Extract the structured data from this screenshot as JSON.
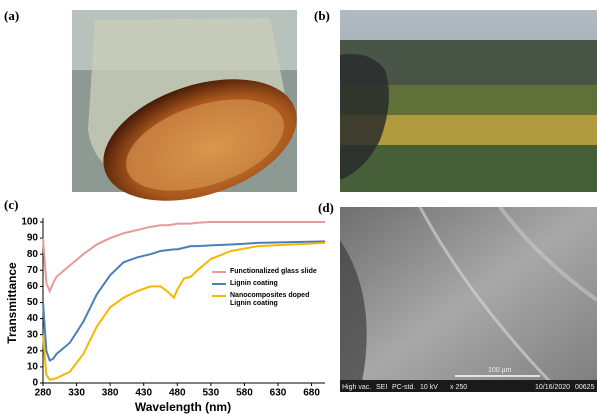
{
  "panels": {
    "a": {
      "label": "(a)"
    },
    "b": {
      "label": "(b)"
    },
    "c": {
      "label": "(c)"
    },
    "d": {
      "label": "(d)",
      "scale_bar": "100 µm",
      "info_bar": [
        "High vac.",
        "SEI",
        "PC-std.",
        "10 kV",
        "x 250",
        "10/16/2020",
        "00625"
      ]
    }
  },
  "chart_data": {
    "type": "line",
    "x_label": "Wavelength (nm)",
    "y_label": "Transmittance",
    "x": [
      280,
      285,
      290,
      295,
      300,
      320,
      340,
      360,
      380,
      400,
      420,
      440,
      455,
      465,
      475,
      480,
      490,
      500,
      510,
      530,
      560,
      600,
      650,
      700
    ],
    "series": [
      {
        "name": "Functionalized glass slide",
        "color": "#e89a9a",
        "values": [
          90,
          62,
          57,
          62,
          66,
          73,
          80,
          86,
          90,
          93,
          95,
          97,
          98,
          98,
          98.5,
          99,
          99,
          99,
          99.5,
          100,
          100,
          100,
          100,
          100
        ]
      },
      {
        "name": "Lignin coating",
        "color": "#4a7ebb",
        "values": [
          50,
          20,
          14,
          15,
          18,
          25,
          38,
          55,
          67,
          75,
          78,
          80,
          82,
          82.5,
          83,
          83,
          84,
          85,
          85,
          85.5,
          86,
          87,
          87.5,
          88
        ]
      },
      {
        "name": "Nanocomposites doped Lignin coating",
        "color": "#f5b800",
        "values": [
          30,
          5,
          2,
          2.5,
          3,
          7,
          18,
          35,
          47,
          53,
          57,
          60,
          60,
          57,
          53,
          58,
          65,
          66,
          70,
          77,
          82,
          85,
          86,
          87
        ]
      }
    ],
    "xlim": [
      280,
      700
    ],
    "ylim": [
      0,
      100
    ],
    "xticks": [
      280,
      330,
      380,
      430,
      480,
      530,
      580,
      630,
      680
    ],
    "yticks": [
      0,
      10,
      20,
      30,
      40,
      50,
      60,
      70,
      80,
      90,
      100
    ]
  }
}
